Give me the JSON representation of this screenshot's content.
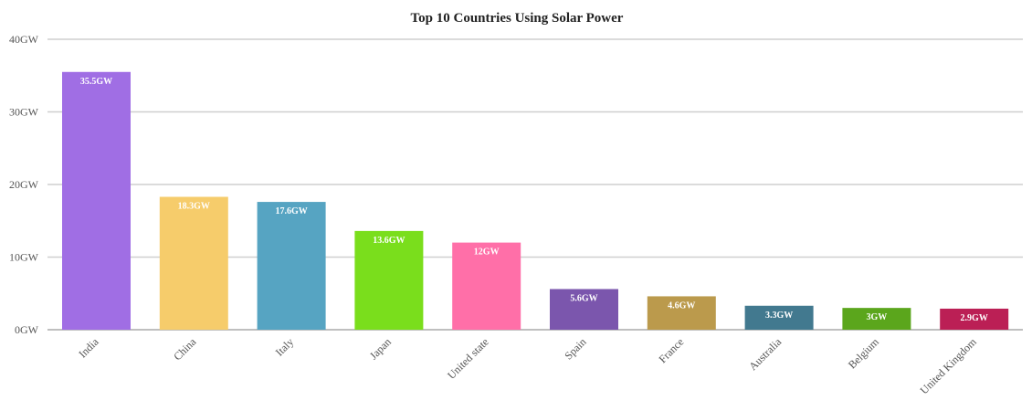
{
  "chart_data": {
    "type": "bar",
    "title": "Top 10 Countries Using Solar Power",
    "xlabel": "",
    "ylabel": "",
    "ylim": [
      0,
      40
    ],
    "y_unit": "GW",
    "yticks": [
      {
        "value": 0,
        "label": "0GW"
      },
      {
        "value": 10,
        "label": "10GW"
      },
      {
        "value": 20,
        "label": "20GW"
      },
      {
        "value": 30,
        "label": "30GW"
      },
      {
        "value": 40,
        "label": "40GW"
      }
    ],
    "grid": true,
    "legend": "none",
    "categories": [
      "India",
      "China",
      "Italy",
      "Japan",
      "United state",
      "Spain",
      "France",
      "Australia",
      "Belgium",
      "United Kingdom"
    ],
    "values": [
      35.5,
      18.3,
      17.6,
      13.6,
      12,
      5.6,
      4.6,
      3.3,
      3,
      2.9
    ],
    "data_labels": [
      "35.5GW",
      "18.3GW",
      "17.6GW",
      "13.6GW",
      "12GW",
      "5.6GW",
      "4.6GW",
      "3.3GW",
      "3GW",
      "2.9GW"
    ],
    "colors": [
      "#a06ee4",
      "#f6cc6b",
      "#56a4c2",
      "#7ade1c",
      "#ff6fa8",
      "#7b56ad",
      "#bb9a4c",
      "#42798f",
      "#5ba61c",
      "#bb1f55"
    ]
  }
}
